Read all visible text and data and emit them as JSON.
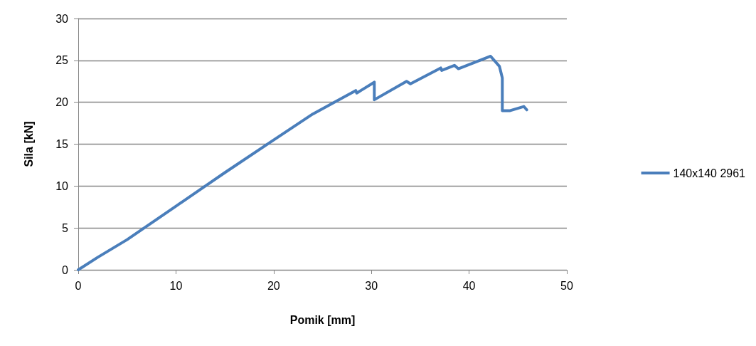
{
  "chart_data": {
    "type": "line",
    "xlabel": "Pomik [mm]",
    "ylabel": "Sila [kN]",
    "xlim": [
      0,
      50
    ],
    "xticks": [
      0,
      10,
      20,
      30,
      40,
      50
    ],
    "ylim": [
      0,
      30
    ],
    "yticks": [
      0,
      5,
      10,
      15,
      20,
      25,
      30
    ],
    "grid": "y",
    "legend": "right",
    "marker": "none",
    "line_style": "solid",
    "series": [
      {
        "name": "140x140 2961",
        "color": "#4a7ebb",
        "x": [
          0,
          2,
          5,
          10,
          15,
          20,
          24,
          26.2,
          28.4,
          28.5,
          30.3,
          30.3,
          33.6,
          34.0,
          37.1,
          37.2,
          38.5,
          38.9,
          42.2,
          43.1,
          43.4,
          43.4,
          44.2,
          45.6,
          45.9
        ],
        "values": [
          0,
          1.5,
          3.6,
          7.6,
          11.6,
          15.5,
          18.6,
          20,
          21.4,
          21.1,
          22.4,
          20.3,
          22.5,
          22.2,
          24.1,
          23.8,
          24.4,
          24.0,
          25.5,
          24.3,
          22.9,
          19.0,
          19.0,
          19.5,
          19.1
        ]
      }
    ]
  }
}
